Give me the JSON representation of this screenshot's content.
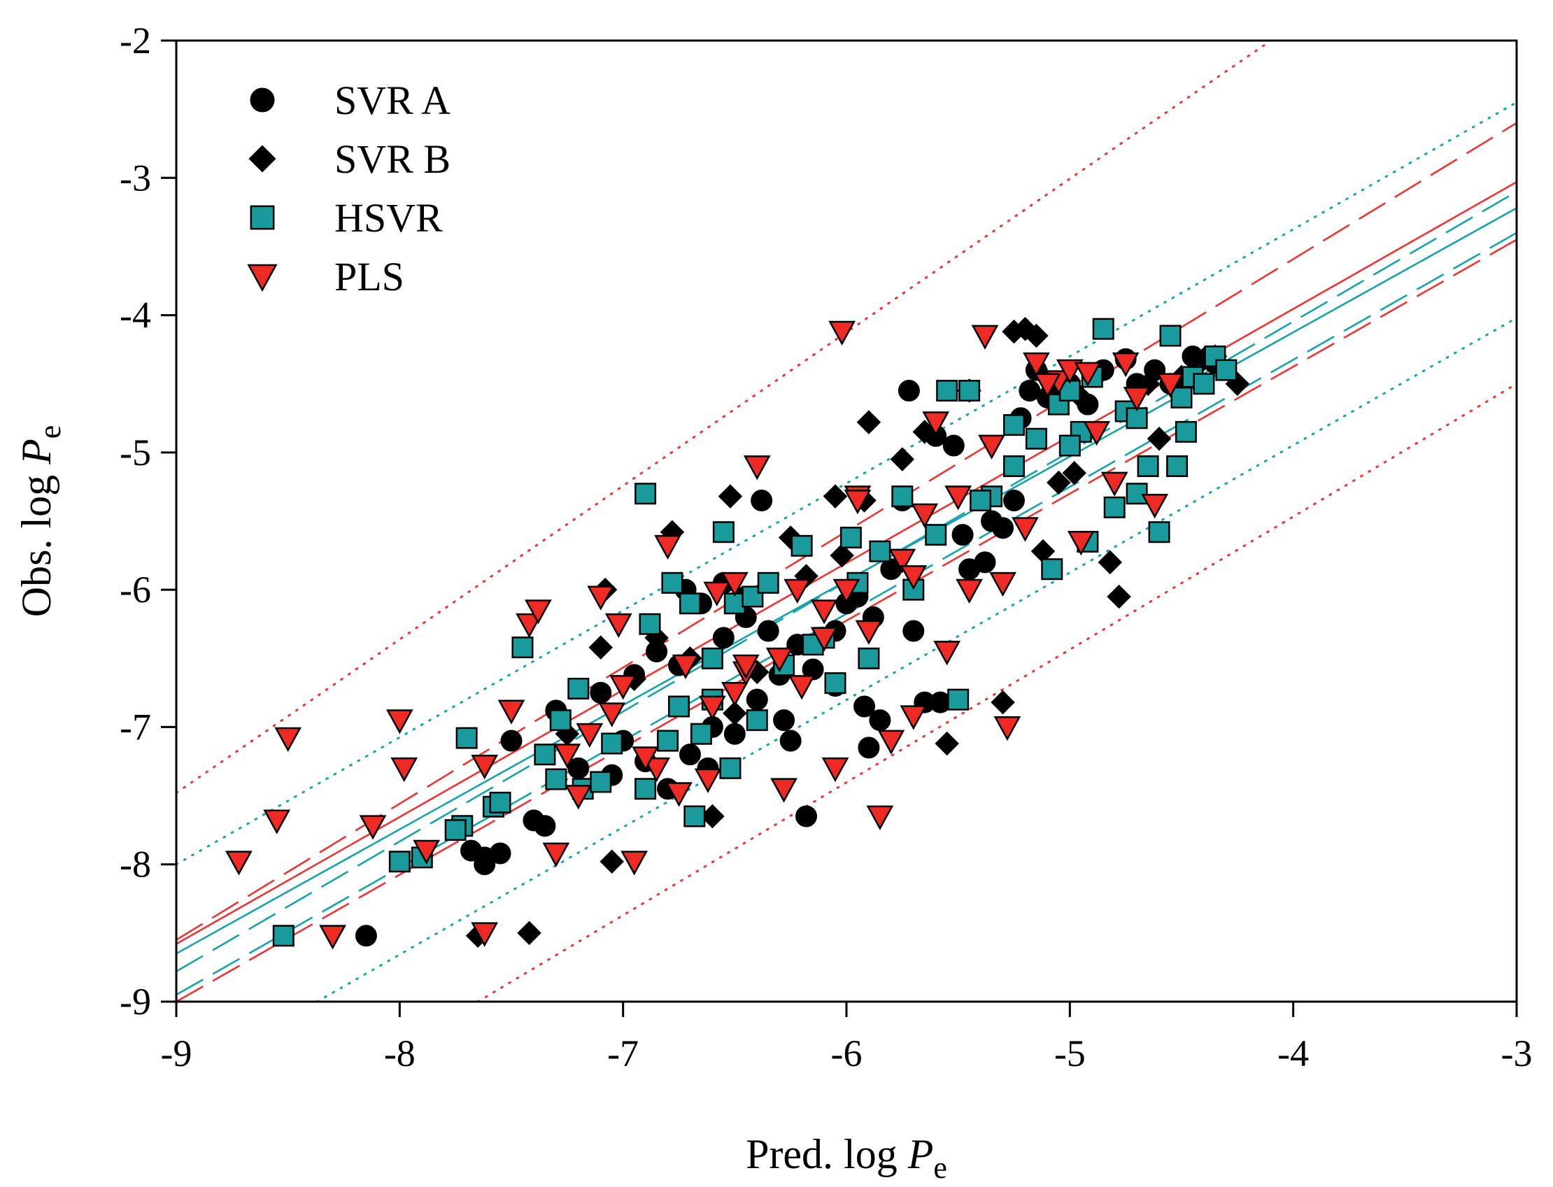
{
  "chart_data": {
    "type": "scatter",
    "title": "",
    "xlabel": "Pred. log",
    "ylabel": "Obs. log",
    "label_var": "P",
    "label_sub": "e",
    "xlim": [
      -9,
      -3
    ],
    "ylim": [
      -9,
      -2
    ],
    "xticks": [
      "-9",
      "-8",
      "-7",
      "-6",
      "-5",
      "-4",
      "-3"
    ],
    "yticks": [
      "-9",
      "-8",
      "-7",
      "-6",
      "-5",
      "-4",
      "-3",
      "-2"
    ],
    "legend_position": "top-left",
    "legend": [
      {
        "name": "SVR A",
        "marker": "circle"
      },
      {
        "name": "SVR B",
        "marker": "diamond"
      },
      {
        "name": "HSVR",
        "marker": "square"
      },
      {
        "name": "PLS",
        "marker": "triangle-down"
      }
    ],
    "colors": {
      "svr_a": "#000000",
      "svr_b": "#000000",
      "hsvr_fill": "#1a9a9a",
      "hsvr_line": "#16a3a8",
      "pls_fill": "#ee2a24",
      "pls_line": "#ee3333"
    },
    "series": [
      {
        "name": "SVR A",
        "marker": "circle",
        "x": [
          -8.15,
          -7.62,
          -7.55,
          -7.35,
          -7.4,
          -7.2,
          -7.3,
          -7.1,
          -6.95,
          -6.85,
          -6.72,
          -6.65,
          -6.55,
          -6.45,
          -6.38,
          -6.35,
          -6.3,
          -6.22,
          -6.15,
          -6.05,
          -6.0,
          -5.95,
          -5.88,
          -5.8,
          -5.75,
          -5.72,
          -5.7,
          -5.6,
          -5.52,
          -5.45,
          -5.38,
          -5.3,
          -5.25,
          -5.22,
          -5.18,
          -5.15,
          -5.05,
          -5.0,
          -4.92,
          -4.85,
          -4.75,
          -4.7,
          -4.62,
          -4.55,
          -4.45,
          -4.35,
          -6.62,
          -6.7,
          -6.5,
          -6.8,
          -6.6,
          -7.0,
          -6.9,
          -6.25,
          -6.4,
          -5.9,
          -5.85,
          -6.18,
          -7.5,
          -7.62,
          -7.68,
          -7.05,
          -6.75,
          -6.55,
          -6.28,
          -5.65,
          -5.58,
          -5.35,
          -5.1,
          -4.88,
          -6.45,
          -6.05,
          -5.92,
          -5.48
        ],
        "y": [
          -8.52,
          -8.0,
          -7.92,
          -7.72,
          -7.68,
          -7.3,
          -6.88,
          -6.75,
          -6.62,
          -6.45,
          -6.0,
          -6.1,
          -5.95,
          -6.05,
          -5.35,
          -6.3,
          -6.62,
          -6.4,
          -6.58,
          -6.3,
          -6.1,
          -6.05,
          -6.2,
          -5.85,
          -5.35,
          -4.55,
          -6.3,
          -4.88,
          -4.95,
          -5.85,
          -5.8,
          -5.55,
          -5.35,
          -4.75,
          -4.55,
          -4.4,
          -4.55,
          -4.5,
          -4.65,
          -4.4,
          -4.32,
          -4.5,
          -4.4,
          -4.5,
          -4.3,
          -4.35,
          -7.3,
          -7.2,
          -7.05,
          -7.45,
          -7.0,
          -7.1,
          -7.25,
          -7.1,
          -6.8,
          -7.15,
          -6.95,
          -7.65,
          -7.1,
          -7.95,
          -7.9,
          -7.35,
          -6.55,
          -6.35,
          -6.95,
          -6.82,
          -6.82,
          -5.5,
          -4.6,
          -4.42,
          -6.2,
          -6.7,
          -6.85,
          -5.6
        ]
      },
      {
        "name": "SVR B",
        "marker": "diamond",
        "x": [
          -7.65,
          -7.42,
          -7.05,
          -6.6,
          -7.1,
          -6.78,
          -6.52,
          -6.4,
          -6.25,
          -6.18,
          -6.05,
          -5.92,
          -5.55,
          -5.3,
          -5.25,
          -5.2,
          -5.15,
          -5.05,
          -4.98,
          -4.82,
          -4.78,
          -4.6,
          -4.35,
          -4.25,
          -5.9,
          -6.7,
          -6.85,
          -6.95,
          -7.08,
          -7.25,
          -6.02,
          -5.75,
          -5.65,
          -5.45,
          -5.12,
          -4.95,
          -4.65,
          -4.5,
          -4.4,
          -6.5
        ],
        "y": [
          -8.52,
          -8.5,
          -7.98,
          -7.65,
          -6.42,
          -5.58,
          -5.32,
          -6.6,
          -5.62,
          -5.9,
          -5.32,
          -5.35,
          -7.12,
          -6.82,
          -4.12,
          -4.1,
          -4.15,
          -5.22,
          -5.15,
          -5.8,
          -6.05,
          -4.9,
          -4.3,
          -4.5,
          -4.78,
          -6.5,
          -6.35,
          -6.65,
          -6.0,
          -7.05,
          -5.75,
          -5.05,
          -4.85,
          -4.55,
          -5.72,
          -4.6,
          -4.5,
          -4.45,
          -4.32,
          -6.9
        ]
      },
      {
        "name": "HSVR",
        "marker": "square",
        "x": [
          -8.52,
          -8.0,
          -7.9,
          -7.72,
          -7.7,
          -7.58,
          -7.45,
          -7.35,
          -7.28,
          -7.2,
          -7.18,
          -7.05,
          -6.9,
          -6.88,
          -6.78,
          -6.68,
          -6.55,
          -6.5,
          -6.42,
          -6.35,
          -6.2,
          -6.1,
          -6.05,
          -5.98,
          -5.95,
          -5.85,
          -5.75,
          -5.6,
          -5.55,
          -5.5,
          -5.45,
          -5.35,
          -5.25,
          -5.15,
          -5.08,
          -5.05,
          -5.0,
          -4.95,
          -4.92,
          -4.85,
          -4.8,
          -4.75,
          -4.7,
          -4.65,
          -4.6,
          -4.55,
          -4.52,
          -4.5,
          -4.48,
          -4.45,
          -4.4,
          -4.35,
          -4.3,
          -6.6,
          -6.7,
          -6.75,
          -6.52,
          -6.4,
          -6.65,
          -7.75,
          -7.55,
          -7.3,
          -7.1,
          -6.9,
          -6.8,
          -6.6,
          -6.28,
          -6.15,
          -5.9,
          -5.7,
          -5.4,
          -5.25,
          -5.0,
          -4.9,
          -4.7
        ],
        "y": [
          -8.52,
          -7.98,
          -7.95,
          -7.72,
          -7.08,
          -7.58,
          -6.42,
          -7.2,
          -6.95,
          -6.72,
          -7.45,
          -7.12,
          -5.3,
          -6.25,
          -5.95,
          -7.65,
          -5.58,
          -6.1,
          -6.05,
          -5.95,
          -5.68,
          -6.35,
          -6.68,
          -5.62,
          -5.95,
          -5.72,
          -5.32,
          -5.6,
          -4.55,
          -6.8,
          -4.55,
          -5.32,
          -4.8,
          -4.9,
          -5.85,
          -4.65,
          -4.55,
          -4.85,
          -5.65,
          -4.1,
          -5.4,
          -4.7,
          -5.3,
          -5.1,
          -5.58,
          -4.15,
          -5.1,
          -4.6,
          -4.85,
          -4.45,
          -4.5,
          -4.3,
          -4.4,
          -6.5,
          -6.1,
          -6.85,
          -7.3,
          -6.95,
          -7.05,
          -7.75,
          -7.55,
          -7.38,
          -7.4,
          -7.45,
          -7.1,
          -6.8,
          -6.55,
          -6.4,
          -6.5,
          -6.0,
          -5.35,
          -5.1,
          -4.95,
          -4.45,
          -4.75
        ]
      },
      {
        "name": "PLS",
        "marker": "triangle-down",
        "x": [
          -8.72,
          -8.5,
          -8.55,
          -8.3,
          -8.12,
          -8.0,
          -7.98,
          -7.88,
          -7.62,
          -7.62,
          -7.5,
          -7.42,
          -7.38,
          -7.3,
          -7.2,
          -7.1,
          -7.02,
          -6.95,
          -6.8,
          -6.72,
          -6.62,
          -6.58,
          -6.5,
          -6.45,
          -6.4,
          -6.28,
          -6.22,
          -6.1,
          -6.05,
          -6.02,
          -5.95,
          -5.9,
          -5.85,
          -5.8,
          -5.75,
          -5.7,
          -5.6,
          -5.55,
          -5.5,
          -5.45,
          -5.38,
          -5.3,
          -5.28,
          -5.2,
          -5.15,
          -5.05,
          -5.0,
          -4.95,
          -4.92,
          -4.8,
          -4.75,
          -4.62,
          -4.55,
          -6.75,
          -6.85,
          -6.9,
          -7.0,
          -7.15,
          -6.5,
          -6.3,
          -6.1,
          -6.0,
          -5.95,
          -5.7,
          -5.65,
          -5.35,
          -5.1,
          -4.88,
          -4.7,
          -7.25,
          -7.05,
          -6.6,
          -6.45,
          -6.2
        ],
        "y": [
          -7.98,
          -7.08,
          -7.68,
          -8.52,
          -7.72,
          -6.95,
          -7.3,
          -7.9,
          -7.28,
          -8.5,
          -6.88,
          -6.25,
          -6.15,
          -7.92,
          -7.5,
          -6.05,
          -6.25,
          -7.98,
          -5.68,
          -6.55,
          -7.38,
          -6.02,
          -5.95,
          -6.6,
          -5.1,
          -7.45,
          -6.0,
          -6.15,
          -7.3,
          -4.12,
          -5.32,
          -6.3,
          -7.65,
          -7.1,
          -5.78,
          -6.92,
          -4.78,
          -6.45,
          -5.32,
          -6.0,
          -4.15,
          -5.95,
          -7.0,
          -5.55,
          -4.35,
          -4.48,
          -4.4,
          -5.65,
          -4.42,
          -5.22,
          -4.35,
          -5.38,
          -4.5,
          -7.48,
          -7.3,
          -7.22,
          -6.7,
          -7.05,
          -6.75,
          -6.5,
          -6.35,
          -6.0,
          -5.35,
          -5.9,
          -5.45,
          -4.95,
          -4.5,
          -4.85,
          -4.6,
          -7.2,
          -6.9,
          -6.85,
          -6.55,
          -6.7
        ]
      }
    ],
    "lines": [
      {
        "name": "fit-red",
        "style": "solid",
        "color": "#ee3333",
        "x": [
          -9,
          -3
        ],
        "y": [
          -8.58,
          -3.03
        ]
      },
      {
        "name": "fit-teal",
        "style": "solid",
        "color": "#16a3a8",
        "x": [
          -9,
          -3
        ],
        "y": [
          -8.65,
          -3.22
        ]
      },
      {
        "name": "ci-upper-red",
        "style": "dashed",
        "color": "#ee3333",
        "x": [
          -9,
          -3
        ],
        "y": [
          -8.55,
          -2.6
        ]
      },
      {
        "name": "ci-lower-red",
        "style": "dashed",
        "color": "#ee3333",
        "x": [
          -9,
          -3
        ],
        "y": [
          -9.0,
          -3.45
        ]
      },
      {
        "name": "ci-upper-teal",
        "style": "dashed",
        "color": "#16a3a8",
        "x": [
          -9,
          -3
        ],
        "y": [
          -8.78,
          -3.1
        ]
      },
      {
        "name": "ci-lower-teal",
        "style": "dashed",
        "color": "#16a3a8",
        "x": [
          -9,
          -3
        ],
        "y": [
          -8.95,
          -3.4
        ]
      },
      {
        "name": "pi-upper-teal",
        "style": "dotted",
        "color": "#16a3a8",
        "x": [
          -9,
          -3
        ],
        "y": [
          -8.0,
          -2.45
        ]
      },
      {
        "name": "pi-lower-teal",
        "style": "dotted",
        "color": "#16a3a8",
        "x": [
          -8.37,
          -3
        ],
        "y": [
          -9.0,
          -4.02
        ]
      },
      {
        "name": "pi-upper-red",
        "style": "dotted",
        "color": "#ee3333",
        "x": [
          -9,
          -4.1
        ],
        "y": [
          -7.48,
          -2.0
        ]
      },
      {
        "name": "pi-lower-red",
        "style": "dotted",
        "color": "#ee3333",
        "x": [
          -7.65,
          -3
        ],
        "y": [
          -9.0,
          -4.5
        ]
      }
    ]
  }
}
